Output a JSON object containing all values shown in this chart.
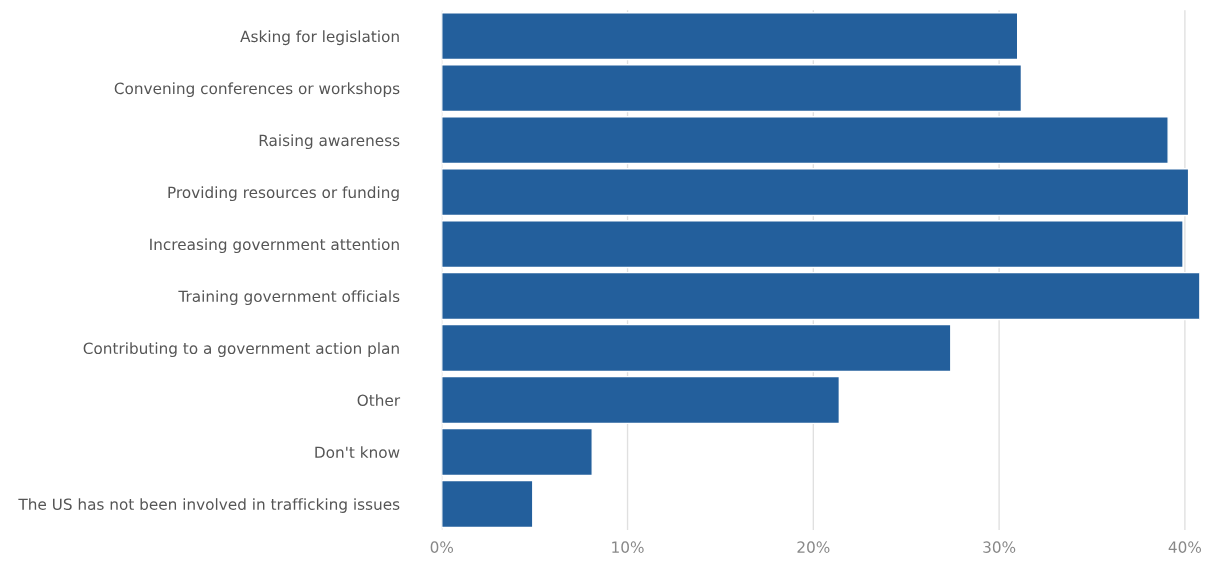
{
  "chart_data": {
    "type": "bar",
    "orientation": "horizontal",
    "categories": [
      "Asking for legislation",
      "Convening conferences or workshops",
      "Raising awareness",
      "Providing resources or funding",
      "Increasing government attention",
      "Training government officials",
      "Contributing to a government action plan",
      "Other",
      "Don't know",
      "The US has not been involved in trafficking issues"
    ],
    "values": [
      31.0,
      31.2,
      39.1,
      40.2,
      39.9,
      40.8,
      27.4,
      21.4,
      8.1,
      4.9
    ],
    "color": "#235f9c",
    "xlim": [
      0,
      40.8
    ],
    "xticks": [
      {
        "value": 0,
        "label": "0%"
      },
      {
        "value": 10,
        "label": "10%"
      },
      {
        "value": 20,
        "label": "20%"
      },
      {
        "value": 30,
        "label": "30%"
      },
      {
        "value": 40,
        "label": "40%"
      }
    ],
    "grid": "x",
    "legend": false
  }
}
